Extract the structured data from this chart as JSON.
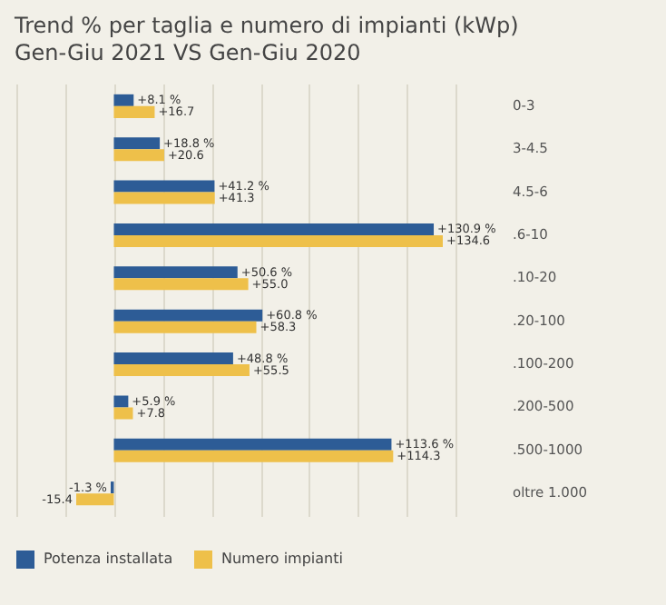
{
  "chart_data": {
    "type": "bar",
    "orientation": "horizontal",
    "title": "Trend % per taglia e numero di impianti (kWp)",
    "subtitle": "Gen-Giu 2021 VS Gen-Giu 2020",
    "categories": [
      "0-3",
      "3-4.5",
      "4.5-6",
      ".6-10",
      ".10-20",
      ".20-100",
      ".100-200",
      ".200-500",
      ".500-1000",
      "oltre 1.000"
    ],
    "series": [
      {
        "name": "Potenza installata",
        "color": "#2d5c96",
        "values": [
          8.1,
          18.8,
          41.2,
          130.9,
          50.6,
          60.8,
          48.8,
          5.9,
          113.6,
          -1.3
        ],
        "value_labels": [
          "+8.1 %",
          "+18.8 %",
          "+41.2 %",
          "+130.9 %",
          "+50.6 %",
          "+60.8 %",
          "+48.8 %",
          "+5.9 %",
          "+113.6 %",
          "-1.3 %"
        ]
      },
      {
        "name": "Numero impianti",
        "color": "#eec04a",
        "values": [
          16.7,
          20.6,
          41.3,
          134.6,
          55.0,
          58.3,
          55.5,
          7.8,
          114.3,
          -15.4
        ],
        "value_labels": [
          "+16.7",
          "+20.6",
          "+41.3",
          "+134.6",
          "+55.0",
          "+58.3",
          "+55.5",
          "+7.8",
          "+114.3",
          "-15.4"
        ]
      }
    ],
    "tick_labels": "y",
    "grid": "x",
    "legend": "bottom"
  }
}
